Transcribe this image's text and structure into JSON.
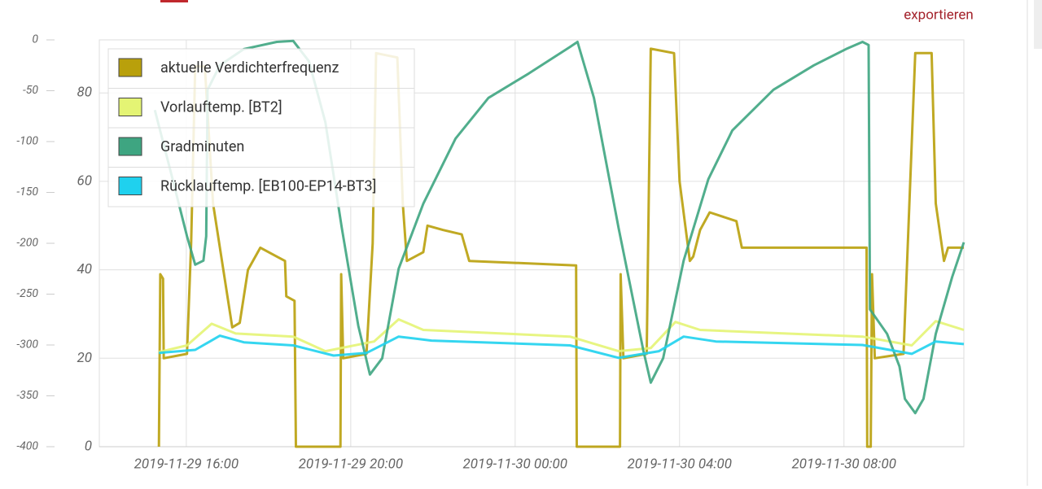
{
  "header": {
    "export_link": "exportieren"
  },
  "chart_data": {
    "type": "line",
    "xlim": [
      "2019-11-29 13:53",
      "2019-11-30 10:55"
    ],
    "xticks": [
      "2019-11-29 16:00",
      "2019-11-29 20:00",
      "2019-11-30 00:00",
      "2019-11-30 04:00",
      "2019-11-30 08:00"
    ],
    "ylim": [
      0,
      92
    ],
    "yticks": [
      0,
      20,
      40,
      60,
      80
    ],
    "y2lim": [
      -400,
      0
    ],
    "y2ticks": [
      -400,
      -350,
      -300,
      -250,
      -200,
      -150,
      -100,
      -50,
      0
    ],
    "grid": true,
    "legend": "upper left",
    "series": [
      {
        "name": "aktuelle Verdichterfrequenz",
        "color": "#b9a00b",
        "x": [
          "2019-11-29 15:20",
          "2019-11-29 15:22",
          "2019-11-29 15:26",
          "2019-11-29 15:27",
          "2019-11-29 16:01",
          "2019-11-29 16:07",
          "2019-11-29 16:13",
          "2019-11-29 16:27",
          "2019-11-29 16:39",
          "2019-11-29 17:07",
          "2019-11-29 17:18",
          "2019-11-29 17:30",
          "2019-11-29 17:48",
          "2019-11-29 18:12",
          "2019-11-29 18:24",
          "2019-11-29 18:26",
          "2019-11-29 18:38",
          "2019-11-29 18:40",
          "2019-11-29 19:45",
          "2019-11-29 19:46",
          "2019-11-29 19:49",
          "2019-11-29 20:23",
          "2019-11-29 20:32",
          "2019-11-29 20:37",
          "2019-11-29 21:08",
          "2019-11-29 21:16",
          "2019-11-29 21:22",
          "2019-11-29 21:46",
          "2019-11-29 21:52",
          "2019-11-29 22:15",
          "2019-11-29 22:42",
          "2019-11-29 22:53",
          "2019-11-30 01:29",
          "2019-11-30 01:30",
          "2019-11-30 02:33",
          "2019-11-30 02:34",
          "2019-11-30 02:38",
          "2019-11-30 03:12",
          "2019-11-30 03:18",
          "2019-11-30 03:52",
          "2019-11-30 04:00",
          "2019-11-30 04:15",
          "2019-11-30 04:20",
          "2019-11-30 04:30",
          "2019-11-30 04:44",
          "2019-11-30 05:23",
          "2019-11-30 05:31",
          "2019-11-30 08:33",
          "2019-11-30 08:34",
          "2019-11-30 08:39",
          "2019-11-30 08:41",
          "2019-11-30 08:45",
          "2019-11-30 09:27",
          "2019-11-30 09:44",
          "2019-11-30 10:08",
          "2019-11-30 10:14",
          "2019-11-30 10:26",
          "2019-11-30 10:32",
          "2019-11-30 10:55"
        ],
        "values": [
          0,
          39,
          38,
          20,
          21,
          46,
          86,
          86,
          55,
          27,
          28,
          40,
          45,
          43,
          42,
          34,
          33,
          0,
          0,
          39,
          20,
          21,
          46,
          89,
          88,
          55,
          42,
          44,
          50,
          49,
          48,
          42,
          41,
          0,
          0,
          39,
          20,
          21,
          90,
          89,
          60,
          42,
          43,
          49,
          53,
          51,
          45,
          45,
          0,
          0,
          39,
          20,
          21,
          89,
          89,
          55,
          42,
          45,
          45
        ]
      },
      {
        "name": "Vorlauftemp. [BT2]",
        "color": "#e4f474",
        "x": [
          "2019-11-29 15:20",
          "2019-11-29 16:01",
          "2019-11-29 16:37",
          "2019-11-29 17:12",
          "2019-11-29 18:36",
          "2019-11-29 19:23",
          "2019-11-29 20:34",
          "2019-11-29 21:10",
          "2019-11-29 21:46",
          "2019-11-30 01:20",
          "2019-11-30 02:31",
          "2019-11-30 03:18",
          "2019-11-30 03:54",
          "2019-11-30 04:30",
          "2019-11-30 08:27",
          "2019-11-30 09:39",
          "2019-11-30 10:14",
          "2019-11-30 10:55"
        ],
        "values": [
          21.4,
          22.9,
          27.8,
          25.6,
          24.9,
          21.6,
          23.8,
          28.8,
          26.4,
          24.9,
          21.6,
          22.3,
          28.2,
          26.4,
          24.9,
          22.9,
          28.4,
          26.4
        ]
      },
      {
        "name": "Gradminuten",
        "color": "#3ea581",
        "axis": "y2",
        "x": [
          "2019-11-29 15:14",
          "2019-11-29 15:37",
          "2019-11-29 16:01",
          "2019-11-29 16:13",
          "2019-11-29 16:25",
          "2019-11-29 16:29",
          "2019-11-29 16:31",
          "2019-11-29 16:49",
          "2019-11-29 17:24",
          "2019-11-29 18:12",
          "2019-11-29 18:36",
          "2019-11-29 18:59",
          "2019-11-29 19:23",
          "2019-11-29 19:47",
          "2019-11-29 20:11",
          "2019-11-29 20:28",
          "2019-11-29 20:46",
          "2019-11-29 21:10",
          "2019-11-29 21:46",
          "2019-11-29 22:33",
          "2019-11-29 23:21",
          "2019-11-30 00:20",
          "2019-11-30 01:20",
          "2019-11-30 01:31",
          "2019-11-30 01:55",
          "2019-11-30 02:31",
          "2019-11-30 03:07",
          "2019-11-30 03:18",
          "2019-11-30 03:36",
          "2019-11-30 04:06",
          "2019-11-30 04:42",
          "2019-11-30 05:17",
          "2019-11-30 06:17",
          "2019-11-30 07:16",
          "2019-11-30 08:03",
          "2019-11-30 08:27",
          "2019-11-30 08:36",
          "2019-11-30 08:38",
          "2019-11-30 09:03",
          "2019-11-30 09:21",
          "2019-11-30 09:29",
          "2019-11-30 09:44",
          "2019-11-30 09:56",
          "2019-11-30 10:14",
          "2019-11-30 10:38",
          "2019-11-30 10:55"
        ],
        "values": [
          -69,
          -129,
          -193,
          -221,
          -217,
          -193,
          -49,
          -25,
          -9,
          -2,
          -1,
          -21,
          -81,
          -185,
          -281,
          -329,
          -313,
          -225,
          -161,
          -97,
          -57,
          -33,
          -7,
          -2,
          -57,
          -185,
          -305,
          -337,
          -313,
          -217,
          -137,
          -89,
          -49,
          -25,
          -9,
          -2,
          -5,
          -265,
          -289,
          -321,
          -353,
          -367,
          -353,
          -289,
          -233,
          -199
        ]
      },
      {
        "name": "Rücklauftemp. [EB100-EP14-BT3]",
        "color": "#1fd1ee",
        "x": [
          "2019-11-29 15:20",
          "2019-11-29 16:13",
          "2019-11-29 16:49",
          "2019-11-29 17:24",
          "2019-11-29 18:36",
          "2019-11-29 19:35",
          "2019-11-29 20:23",
          "2019-11-29 21:10",
          "2019-11-29 21:58",
          "2019-11-30 01:20",
          "2019-11-30 02:31",
          "2019-11-30 03:30",
          "2019-11-30 04:06",
          "2019-11-30 04:53",
          "2019-11-30 08:27",
          "2019-11-30 09:39",
          "2019-11-30 10:14",
          "2019-11-30 10:55"
        ],
        "values": [
          21.2,
          21.9,
          25.1,
          23.6,
          22.9,
          20.6,
          21.2,
          24.9,
          24.0,
          22.9,
          20.1,
          21.6,
          24.9,
          23.8,
          23.0,
          21.0,
          23.8,
          23.2
        ]
      }
    ]
  }
}
